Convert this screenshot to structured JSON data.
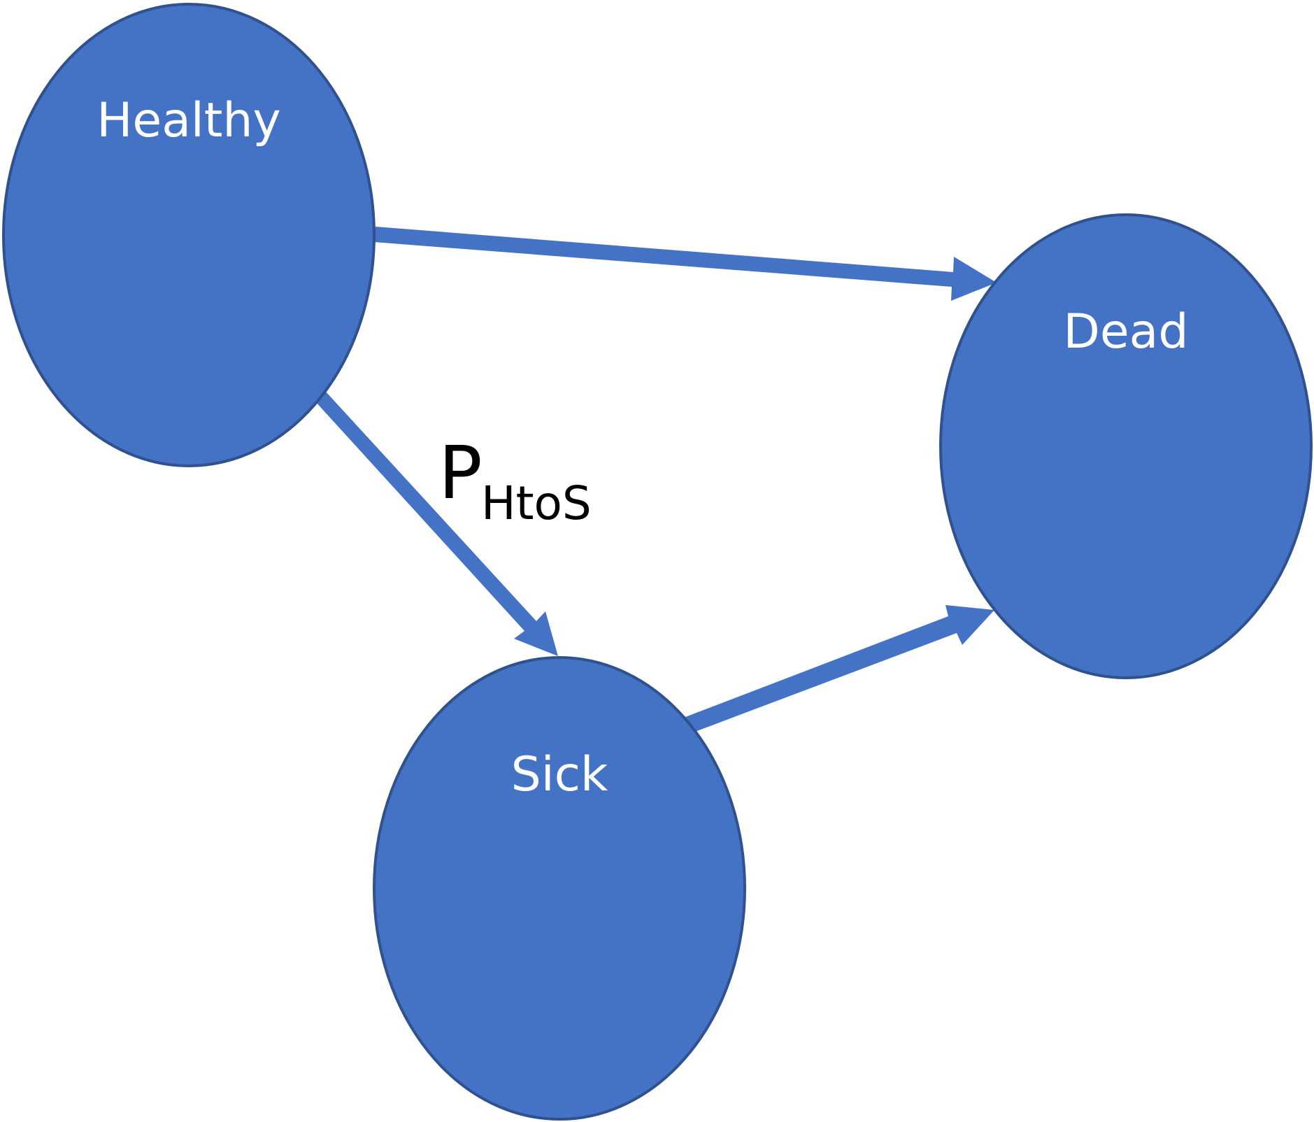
{
  "colors": {
    "node_fill": "#4472C4",
    "node_stroke": "#2F528F",
    "edge": "#4472C4",
    "label_text": "#FFFFFF",
    "annotation_text": "#000000",
    "background": "#FFFFFF"
  },
  "nodes": {
    "healthy": {
      "label": "Healthy"
    },
    "dead": {
      "label": "Dead"
    },
    "sick": {
      "label": "Sick"
    }
  },
  "edges": [
    {
      "from": "Healthy",
      "to": "Dead"
    },
    {
      "from": "Healthy",
      "to": "Sick"
    },
    {
      "from": "Sick",
      "to": "Dead"
    }
  ],
  "annotation": {
    "main": "P",
    "subscript": "HtoS"
  }
}
